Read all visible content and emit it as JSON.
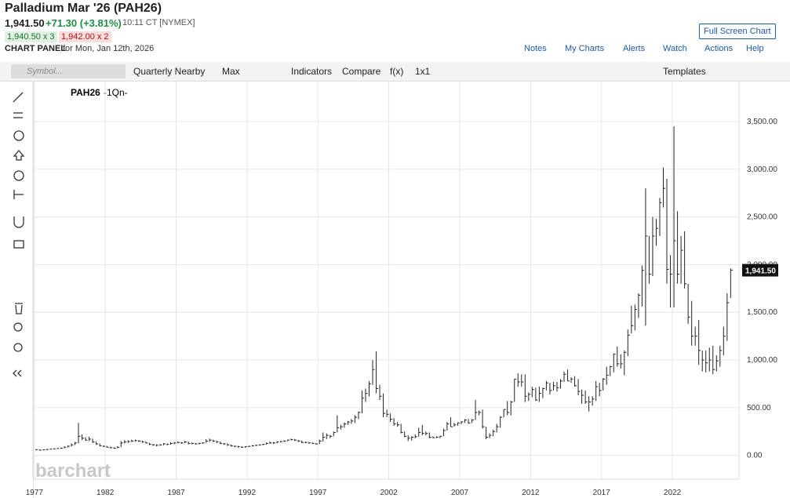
{
  "header": {
    "title": "Palladium Mar '26 (PAH26)",
    "price": "1,941.50",
    "change": "+71.30 (+3.81%)",
    "time": "10:11 CT [NYMEX]",
    "bid": "1,940.50 x 3",
    "ask": "1,942.00 x 2",
    "panel": "CHART PANEL",
    "panel_date": "for Mon, Jan 12th, 2026",
    "full_screen": "Full Screen Chart",
    "links": [
      "Notes",
      "My Charts",
      "Alerts",
      "Watch",
      "Actions",
      "Help"
    ]
  },
  "toolbar": {
    "symbol": "Symbol...",
    "items": [
      "Quarterly Nearby",
      "Max",
      "Indicators",
      "Compare",
      "f(x)",
      "1x1"
    ],
    "templates": "Templates"
  },
  "chart_data": {
    "type": "ohlc",
    "symbol": "PAH26",
    "period": "-1Qn-",
    "watermark": "barchart",
    "color": "#222222",
    "grid": true,
    "xlim": [
      1976.9,
      2026.7
    ],
    "xticks": [
      1977,
      1982,
      1987,
      1992,
      1997,
      2002,
      2007,
      2012,
      2017,
      2022
    ],
    "ylim": [
      -250,
      3920
    ],
    "yticks": [
      {
        "value": 0,
        "label": "0.00"
      },
      {
        "value": 500,
        "label": "500.00"
      },
      {
        "value": 1000,
        "label": "1,000.00"
      },
      {
        "value": 1500,
        "label": "1,500.00"
      },
      {
        "value": 2000,
        "label": "2,000.00"
      },
      {
        "value": 2500,
        "label": "2,500.00"
      },
      {
        "value": 3000,
        "label": "3,000.00"
      },
      {
        "value": 3500,
        "label": "3,500.00"
      }
    ],
    "last_price": {
      "value": 1941.5,
      "label": "1,941.50"
    },
    "x": [
      1977,
      1977.25,
      1977.5,
      1977.75,
      1978,
      1978.25,
      1978.5,
      1978.75,
      1979,
      1979.25,
      1979.5,
      1979.75,
      1980,
      1980.25,
      1980.5,
      1980.75,
      1981,
      1981.25,
      1981.5,
      1981.75,
      1982,
      1982.25,
      1982.5,
      1982.75,
      1983,
      1983.25,
      1983.5,
      1983.75,
      1984,
      1984.25,
      1984.5,
      1984.75,
      1985,
      1985.25,
      1985.5,
      1985.75,
      1986,
      1986.25,
      1986.5,
      1986.75,
      1987,
      1987.25,
      1987.5,
      1987.75,
      1988,
      1988.25,
      1988.5,
      1988.75,
      1989,
      1989.25,
      1989.5,
      1989.75,
      1990,
      1990.25,
      1990.5,
      1990.75,
      1991,
      1991.25,
      1991.5,
      1991.75,
      1992,
      1992.25,
      1992.5,
      1992.75,
      1993,
      1993.25,
      1993.5,
      1993.75,
      1994,
      1994.25,
      1994.5,
      1994.75,
      1995,
      1995.25,
      1995.5,
      1995.75,
      1996,
      1996.25,
      1996.5,
      1996.75,
      1997,
      1997.25,
      1997.5,
      1997.75,
      1998,
      1998.25,
      1998.5,
      1998.75,
      1999,
      1999.25,
      1999.5,
      1999.75,
      2000,
      2000.25,
      2000.5,
      2000.75,
      2001,
      2001.25,
      2001.5,
      2001.75,
      2002,
      2002.25,
      2002.5,
      2002.75,
      2003,
      2003.25,
      2003.5,
      2003.75,
      2004,
      2004.25,
      2004.5,
      2004.75,
      2005,
      2005.25,
      2005.5,
      2005.75,
      2006,
      2006.25,
      2006.5,
      2006.75,
      2007,
      2007.25,
      2007.5,
      2007.75,
      2008,
      2008.25,
      2008.5,
      2008.75,
      2009,
      2009.25,
      2009.5,
      2009.75,
      2010,
      2010.25,
      2010.5,
      2010.75,
      2011,
      2011.25,
      2011.5,
      2011.75,
      2012,
      2012.25,
      2012.5,
      2012.75,
      2013,
      2013.25,
      2013.5,
      2013.75,
      2014,
      2014.25,
      2014.5,
      2014.75,
      2015,
      2015.25,
      2015.5,
      2015.75,
      2016,
      2016.25,
      2016.5,
      2016.75,
      2017,
      2017.25,
      2017.5,
      2017.75,
      2018,
      2018.25,
      2018.5,
      2018.75,
      2019,
      2019.25,
      2019.5,
      2019.75,
      2020,
      2020.25,
      2020.5,
      2020.75,
      2021,
      2021.25,
      2021.5,
      2021.75,
      2022,
      2022.25,
      2022.5,
      2022.75,
      2023,
      2023.25,
      2023.5,
      2023.75,
      2024,
      2024.25,
      2024.5,
      2024.75,
      2025,
      2025.25,
      2025.5,
      2025.75,
      2026
    ],
    "high": [
      65,
      62,
      62,
      66,
      68,
      72,
      76,
      80,
      92,
      105,
      125,
      140,
      340,
      220,
      190,
      195,
      175,
      145,
      125,
      105,
      100,
      90,
      85,
      95,
      150,
      160,
      160,
      165,
      165,
      160,
      155,
      145,
      132,
      120,
      115,
      118,
      128,
      125,
      135,
      140,
      145,
      140,
      150,
      145,
      135,
      130,
      132,
      138,
      170,
      175,
      165,
      155,
      145,
      130,
      125,
      115,
      105,
      100,
      95,
      95,
      100,
      108,
      112,
      115,
      120,
      135,
      145,
      140,
      148,
      150,
      158,
      165,
      175,
      172,
      162,
      155,
      145,
      140,
      135,
      130,
      165,
      240,
      230,
      215,
      250,
      420,
      320,
      345,
      360,
      380,
      420,
      460,
      680,
      700,
      780,
      1000,
      1090,
      740,
      650,
      480,
      440,
      390,
      350,
      330,
      250,
      210,
      200,
      220,
      290,
      320,
      250,
      240,
      200,
      200,
      205,
      280,
      350,
      400,
      340,
      345,
      360,
      380,
      380,
      380,
      580,
      470,
      480,
      300,
      230,
      270,
      330,
      410,
      480,
      570,
      570,
      800,
      860,
      850,
      850,
      660,
      720,
      710,
      720,
      710,
      780,
      760,
      770,
      770,
      800,
      880,
      900,
      820,
      830,
      800,
      690,
      680,
      620,
      620,
      780,
      760,
      810,
      930,
      940,
      1070,
      1140,
      1060,
      1100,
      1320,
      1570,
      1580,
      1700,
      1990,
      2800,
      2300,
      2500,
      2480,
      2700,
      3020,
      2900,
      2100,
      3450,
      2560,
      2300,
      2350,
      1800,
      1620,
      1350,
      1420,
      1100,
      1100,
      1130,
      1150,
      1050,
      1150,
      1350,
      1700,
      1960
    ],
    "low": [
      52,
      50,
      53,
      56,
      60,
      63,
      66,
      70,
      75,
      82,
      92,
      108,
      125,
      160,
      150,
      150,
      130,
      110,
      95,
      88,
      80,
      72,
      68,
      75,
      85,
      125,
      130,
      140,
      145,
      140,
      132,
      125,
      108,
      100,
      95,
      100,
      105,
      105,
      112,
      118,
      125,
      120,
      128,
      115,
      115,
      112,
      115,
      120,
      130,
      140,
      140,
      130,
      118,
      110,
      100,
      92,
      88,
      82,
      78,
      80,
      85,
      92,
      98,
      102,
      105,
      112,
      120,
      120,
      125,
      135,
      140,
      148,
      155,
      150,
      140,
      128,
      128,
      122,
      118,
      112,
      118,
      145,
      170,
      180,
      200,
      240,
      270,
      290,
      320,
      330,
      340,
      380,
      440,
      560,
      620,
      740,
      650,
      580,
      400,
      400,
      350,
      310,
      300,
      230,
      190,
      150,
      155,
      180,
      195,
      210,
      210,
      180,
      180,
      180,
      180,
      200,
      260,
      300,
      300,
      310,
      325,
      340,
      330,
      340,
      370,
      420,
      280,
      170,
      180,
      200,
      240,
      290,
      400,
      420,
      420,
      560,
      720,
      720,
      560,
      570,
      610,
      570,
      560,
      600,
      680,
      640,
      680,
      670,
      700,
      770,
      780,
      760,
      720,
      630,
      540,
      540,
      460,
      520,
      570,
      620,
      680,
      740,
      830,
      870,
      930,
      910,
      840,
      1040,
      1280,
      1310,
      1440,
      1560,
      1360,
      1800,
      1880,
      2200,
      2300,
      2600,
      1800,
      1550,
      1550,
      1800,
      1800,
      1750,
      1380,
      1150,
      1150,
      950,
      880,
      870,
      880,
      850,
      880,
      930,
      1050,
      1200,
      1650
    ],
    "close": [
      60,
      55,
      58,
      62,
      65,
      68,
      72,
      75,
      85,
      95,
      110,
      130,
      200,
      180,
      160,
      170,
      140,
      120,
      100,
      95,
      85,
      80,
      75,
      85,
      130,
      140,
      145,
      150,
      155,
      150,
      140,
      130,
      115,
      110,
      105,
      110,
      120,
      115,
      125,
      130,
      135,
      130,
      140,
      125,
      125,
      120,
      125,
      130,
      150,
      160,
      150,
      140,
      125,
      120,
      110,
      100,
      95,
      90,
      85,
      90,
      95,
      100,
      105,
      110,
      115,
      125,
      130,
      130,
      140,
      145,
      150,
      160,
      165,
      160,
      150,
      135,
      135,
      130,
      125,
      120,
      150,
      190,
      210,
      200,
      240,
      290,
      300,
      330,
      350,
      360,
      400,
      450,
      600,
      650,
      750,
      900,
      700,
      620,
      440,
      430,
      380,
      330,
      320,
      240,
      200,
      180,
      190,
      195,
      240,
      230,
      230,
      190,
      185,
      190,
      200,
      260,
      330,
      300,
      320,
      340,
      350,
      370,
      340,
      370,
      450,
      450,
      300,
      190,
      210,
      250,
      300,
      400,
      480,
      450,
      560,
      800,
      770,
      770,
      620,
      640,
      690,
      580,
      650,
      700,
      760,
      680,
      730,
      710,
      780,
      850,
      780,
      800,
      730,
      670,
      630,
      560,
      560,
      590,
      720,
      680,
      800,
      840,
      930,
      1060,
      960,
      960,
      1080,
      1260,
      1360,
      1530,
      1680,
      1940,
      2300,
      1900,
      2300,
      2380,
      2650,
      2800,
      1950,
      1900,
      2250,
      1900,
      2150,
      1800,
      1450,
      1250,
      1250,
      1100,
      1000,
      970,
      1000,
      900,
      990,
      1100,
      1250,
      1600,
      1941.5
    ]
  }
}
